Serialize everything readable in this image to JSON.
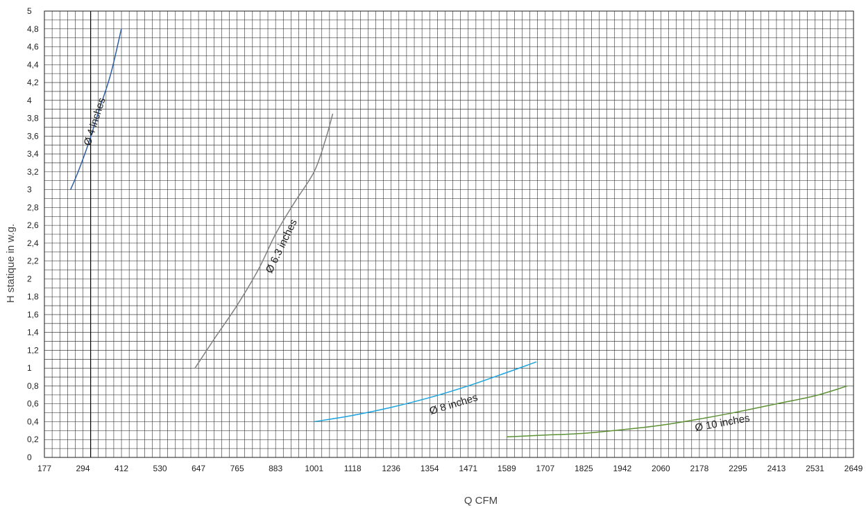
{
  "chart_data": {
    "type": "line",
    "xlabel": "Q CFM",
    "ylabel": "H statique in  w.g.",
    "xlim": [
      177,
      2649
    ],
    "ylim": [
      0,
      5
    ],
    "x_ticks": [
      "177",
      "294",
      "412",
      "530",
      "647",
      "765",
      "883",
      "1001",
      "1118",
      "1236",
      "1354",
      "1471",
      "1589",
      "1707",
      "1825",
      "1942",
      "2060",
      "2178",
      "2295",
      "2413",
      "2531",
      "2649"
    ],
    "y_ticks": [
      "0",
      "0,2",
      "0,4",
      "0,6",
      "0,8",
      "1",
      "1,2",
      "1,4",
      "1,6",
      "1,8",
      "2",
      "2,2",
      "2,4",
      "2,6",
      "2,8",
      "3",
      "3,2",
      "3,4",
      "3,6",
      "3,8",
      "4",
      "4,2",
      "4,4",
      "4,6",
      "4,8",
      "5"
    ],
    "grid": true,
    "series": [
      {
        "name": "Ø 4 inches",
        "color": "#2e5fa3",
        "label_at": {
          "x": 340,
          "y": 3.75
        },
        "points": [
          {
            "x": 257,
            "y": 3.0
          },
          {
            "x": 280,
            "y": 3.2
          },
          {
            "x": 310,
            "y": 3.5
          },
          {
            "x": 345,
            "y": 3.9
          },
          {
            "x": 380,
            "y": 4.3
          },
          {
            "x": 412,
            "y": 4.8
          }
        ]
      },
      {
        "name": "Ø 6.3 inches",
        "color": "#808080",
        "label_at": {
          "x": 910,
          "y": 2.35
        },
        "points": [
          {
            "x": 637,
            "y": 1.0
          },
          {
            "x": 700,
            "y": 1.35
          },
          {
            "x": 765,
            "y": 1.7
          },
          {
            "x": 830,
            "y": 2.1
          },
          {
            "x": 883,
            "y": 2.5
          },
          {
            "x": 940,
            "y": 2.85
          },
          {
            "x": 1001,
            "y": 3.2
          },
          {
            "x": 1035,
            "y": 3.55
          },
          {
            "x": 1058,
            "y": 3.85
          }
        ]
      },
      {
        "name": "Ø 8 inches",
        "color": "#1aa3df",
        "label_at": {
          "x": 1430,
          "y": 0.56
        },
        "points": [
          {
            "x": 1001,
            "y": 0.4
          },
          {
            "x": 1118,
            "y": 0.47
          },
          {
            "x": 1236,
            "y": 0.56
          },
          {
            "x": 1354,
            "y": 0.67
          },
          {
            "x": 1471,
            "y": 0.8
          },
          {
            "x": 1589,
            "y": 0.95
          },
          {
            "x": 1680,
            "y": 1.07
          }
        ]
      },
      {
        "name": "Ø 10 inches",
        "color": "#5d9134",
        "label_at": {
          "x": 2250,
          "y": 0.35
        },
        "points": [
          {
            "x": 1589,
            "y": 0.23
          },
          {
            "x": 1707,
            "y": 0.25
          },
          {
            "x": 1825,
            "y": 0.27
          },
          {
            "x": 1942,
            "y": 0.31
          },
          {
            "x": 2060,
            "y": 0.36
          },
          {
            "x": 2178,
            "y": 0.43
          },
          {
            "x": 2295,
            "y": 0.51
          },
          {
            "x": 2413,
            "y": 0.6
          },
          {
            "x": 2531,
            "y": 0.69
          },
          {
            "x": 2630,
            "y": 0.8
          }
        ]
      }
    ]
  }
}
